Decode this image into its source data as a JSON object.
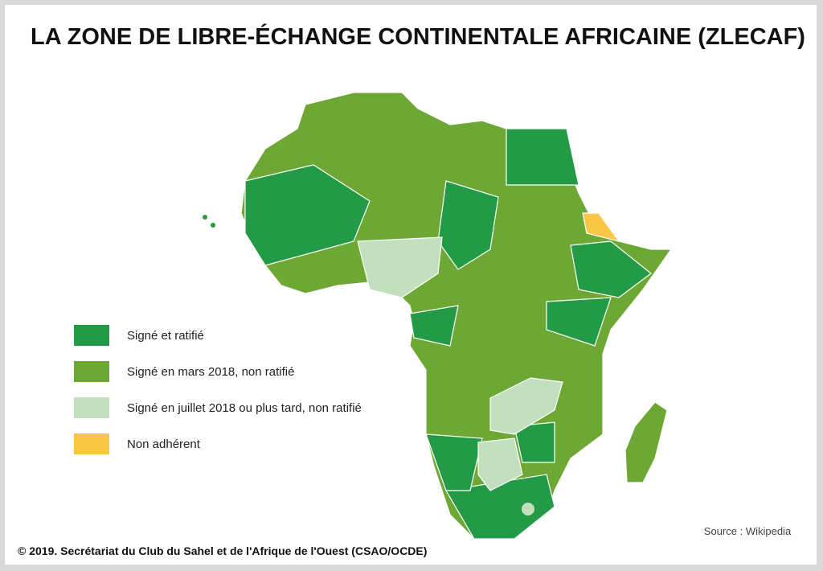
{
  "title": "LA ZONE DE LIBRE-ÉCHANGE CONTINENTALE AFRICAINE (ZLECAF)",
  "legend": [
    {
      "label": "Signé et ratifié",
      "color": "#239a45"
    },
    {
      "label": "Signé en mars 2018, non ratifié",
      "color": "#6ea834"
    },
    {
      "label": "Signé en juillet 2018 ou plus tard,  non ratifié",
      "color": "#c2e0bd"
    },
    {
      "label": "Non adhérent",
      "color": "#f9c745"
    }
  ],
  "source": "Source : Wikipedia",
  "copyright": "© 2019. Secrétariat du Club du Sahel et de l'Afrique de l'Ouest (CSAO/OCDE)"
}
